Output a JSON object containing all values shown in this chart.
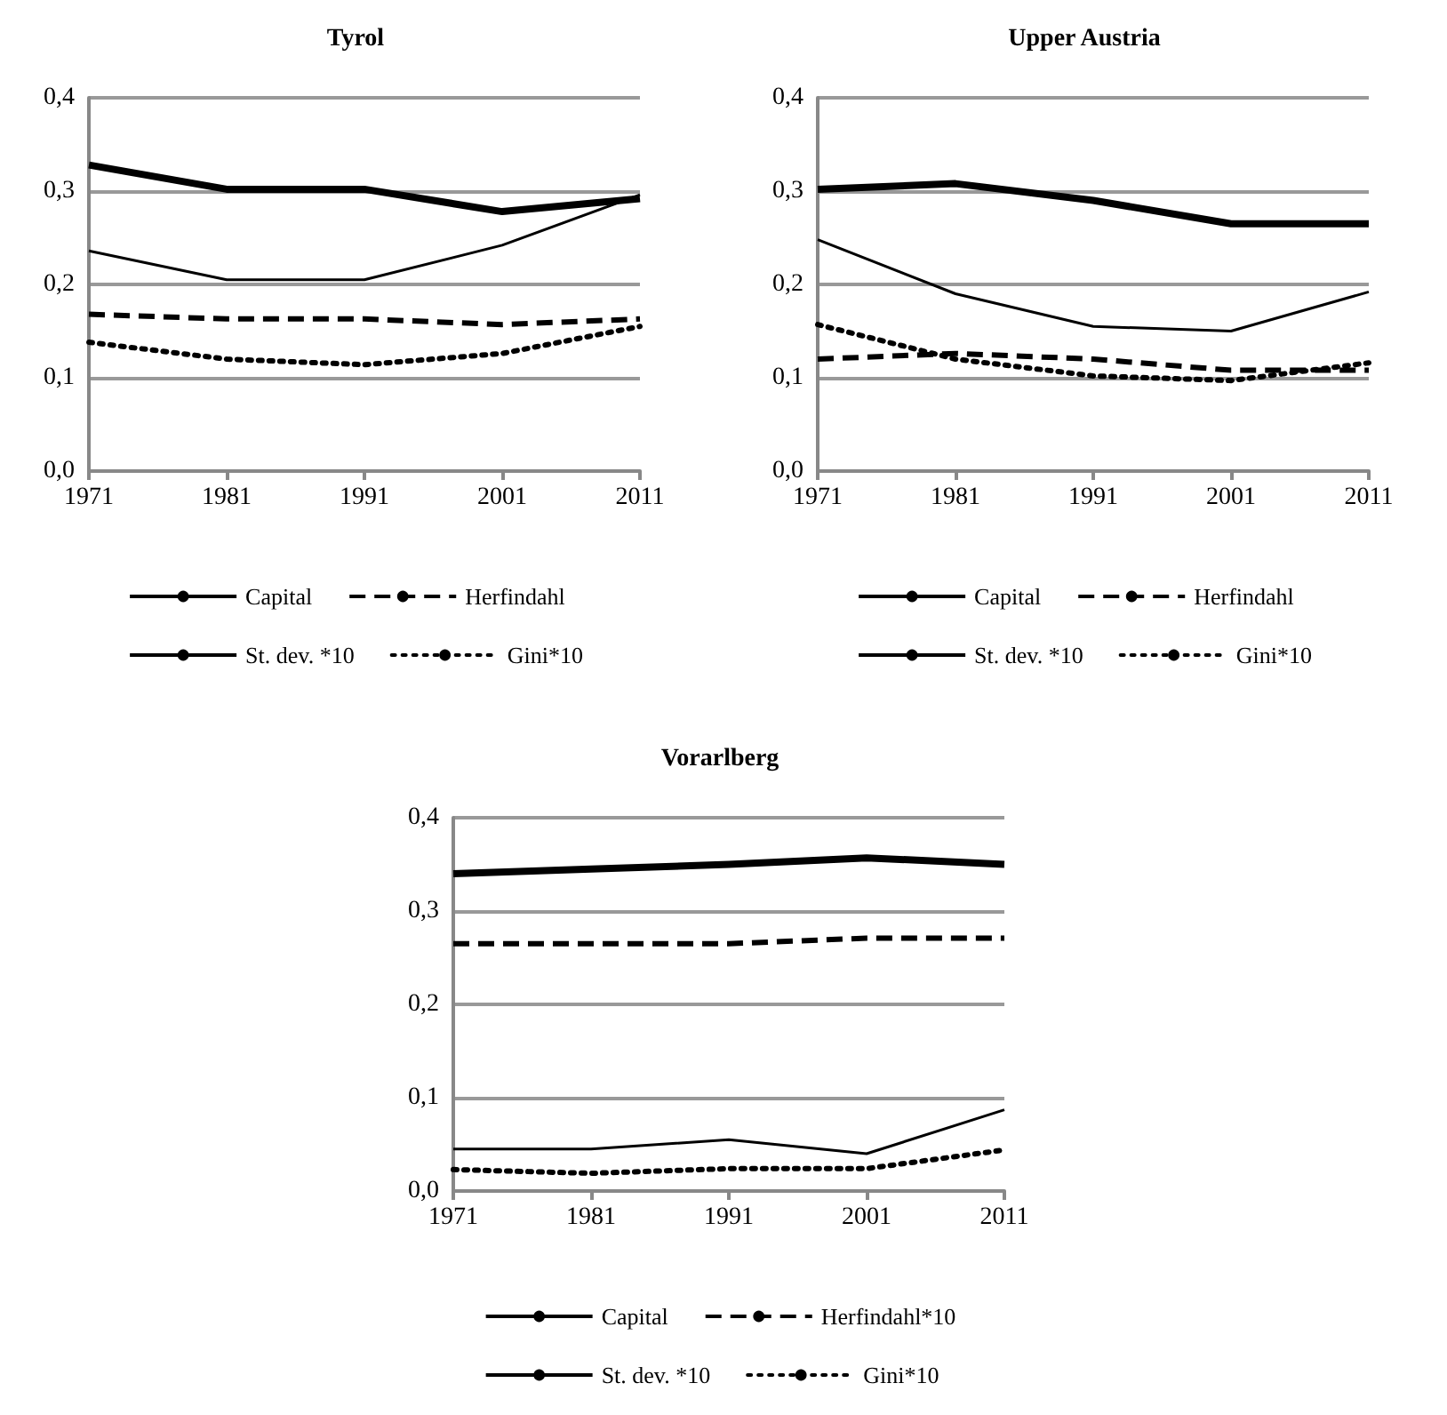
{
  "chart_data": [
    {
      "type": "line",
      "title": "Tyrol",
      "categories": [
        "1971",
        "1981",
        "1991",
        "2001",
        "2011"
      ],
      "ylim": [
        0,
        0.4
      ],
      "yticks": [
        {
          "value": 0,
          "label": "0,0"
        },
        {
          "value": 0.1,
          "label": "0,1"
        },
        {
          "value": 0.2,
          "label": "0,2"
        },
        {
          "value": 0.3,
          "label": "0,3"
        },
        {
          "value": 0.4,
          "label": "0,4"
        }
      ],
      "grid": "y",
      "legend": "bottom",
      "marker": "none",
      "series": [
        {
          "name": "Capital",
          "color": "#000000",
          "line_style": "solid",
          "values": [
            0.328,
            0.302,
            0.302,
            0.278,
            0.292
          ]
        },
        {
          "name": "Herfindahl",
          "color": "#000000",
          "line_style": "dashed",
          "values": [
            0.168,
            0.163,
            0.163,
            0.157,
            0.163
          ]
        },
        {
          "name": "St. dev. *10",
          "color": "#000000",
          "line_style": "solid",
          "values": [
            0.236,
            0.205,
            0.205,
            0.242,
            0.296
          ]
        },
        {
          "name": "Gini*10",
          "color": "#000000",
          "line_style": "dotted",
          "values": [
            0.138,
            0.12,
            0.114,
            0.126,
            0.155
          ]
        }
      ]
    },
    {
      "type": "line",
      "title": "Upper Austria",
      "categories": [
        "1971",
        "1981",
        "1991",
        "2001",
        "2011"
      ],
      "ylim": [
        0,
        0.4
      ],
      "yticks": [
        {
          "value": 0,
          "label": "0,0"
        },
        {
          "value": 0.1,
          "label": "0,1"
        },
        {
          "value": 0.2,
          "label": "0,2"
        },
        {
          "value": 0.3,
          "label": "0,3"
        },
        {
          "value": 0.4,
          "label": "0,4"
        }
      ],
      "grid": "y",
      "legend": "bottom",
      "marker": "none",
      "series": [
        {
          "name": "Capital",
          "color": "#000000",
          "line_style": "solid",
          "values": [
            0.302,
            0.308,
            0.29,
            0.265,
            0.265
          ]
        },
        {
          "name": "Herfindahl",
          "color": "#000000",
          "line_style": "dashed",
          "values": [
            0.12,
            0.126,
            0.12,
            0.108,
            0.108
          ]
        },
        {
          "name": "St. dev. *10",
          "color": "#000000",
          "line_style": "solid",
          "values": [
            0.248,
            0.19,
            0.155,
            0.15,
            0.192
          ]
        },
        {
          "name": "Gini*10",
          "color": "#000000",
          "line_style": "dotted",
          "values": [
            0.157,
            0.12,
            0.102,
            0.097,
            0.116
          ]
        }
      ]
    },
    {
      "type": "line",
      "title": "Vorarlberg",
      "categories": [
        "1971",
        "1981",
        "1991",
        "2001",
        "2011"
      ],
      "ylim": [
        0,
        0.4
      ],
      "yticks": [
        {
          "value": 0,
          "label": "0,0"
        },
        {
          "value": 0.1,
          "label": "0,1"
        },
        {
          "value": 0.2,
          "label": "0,2"
        },
        {
          "value": 0.3,
          "label": "0,3"
        },
        {
          "value": 0.4,
          "label": "0,4"
        }
      ],
      "grid": "y",
      "legend": "bottom",
      "marker": "none",
      "series": [
        {
          "name": "Capital",
          "color": "#000000",
          "line_style": "solid",
          "values": [
            0.34,
            0.345,
            0.35,
            0.357,
            0.35
          ]
        },
        {
          "name": "Herfindahl*10",
          "color": "#000000",
          "line_style": "dashed",
          "values": [
            0.265,
            0.265,
            0.265,
            0.271,
            0.271
          ]
        },
        {
          "name": "St. dev. *10",
          "color": "#000000",
          "line_style": "solid",
          "values": [
            0.045,
            0.045,
            0.055,
            0.04,
            0.087
          ]
        },
        {
          "name": "Gini*10",
          "color": "#000000",
          "line_style": "dotted",
          "values": [
            0.023,
            0.019,
            0.024,
            0.024,
            0.044
          ]
        }
      ]
    }
  ]
}
